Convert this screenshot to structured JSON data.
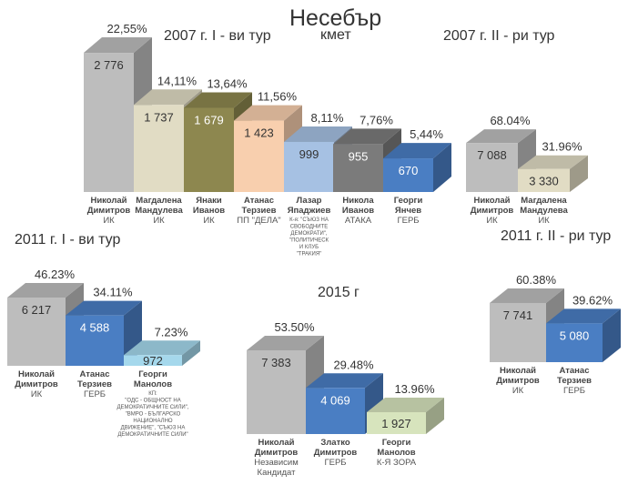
{
  "title": "Несебър",
  "subtitle": "кмет",
  "chart_data": [
    {
      "type": "bar",
      "title": "2007 г. I - ви тур",
      "bars": [
        {
          "name": [
            "Николай",
            "Димитров"
          ],
          "party": [
            "ИК"
          ],
          "value": 2776,
          "value_label": "2 776",
          "pct": "22,55%",
          "color": "#bdbdbd"
        },
        {
          "name": [
            "Магдалена",
            "Мандулева"
          ],
          "party": [
            "ИК"
          ],
          "value": 1737,
          "value_label": "1 737",
          "pct": "14,11%",
          "color": "#e1dcc4"
        },
        {
          "name": [
            "Янаки",
            "Иванов"
          ],
          "party": [
            "ИК"
          ],
          "value": 1679,
          "value_label": "1 679",
          "pct": "13,64%",
          "color": "#8d874f"
        },
        {
          "name": [
            "Атанас",
            "Терзиев"
          ],
          "party": [
            "ПП \"ДЕЛА\""
          ],
          "value": 1423,
          "value_label": "1 423",
          "pct": "11,56%",
          "color": "#f8cfae"
        },
        {
          "name": [
            "Лазар",
            "Япаджиев"
          ],
          "party": [
            "К-я: \"СЪЮЗ НА",
            "СВОБОДНИТЕ",
            "ДЕМОКРАТИ\",",
            "\"ПОЛИТИЧЕСК",
            "И КЛУБ",
            "\"ТРАКИЯ\""
          ],
          "value": 999,
          "value_label": "999",
          "pct": "8,11%",
          "color": "#a6c1e3"
        },
        {
          "name": [
            "Никола",
            "Иванов"
          ],
          "party": [
            "АТАКА"
          ],
          "value": 955,
          "value_label": "955",
          "pct": "7,76%",
          "color": "#7b7b7b"
        },
        {
          "name": [
            "Георги",
            "Янчев"
          ],
          "party": [
            "ГЕРБ"
          ],
          "value": 670,
          "value_label": "670",
          "pct": "5,44%",
          "color": "#4a7ec3"
        }
      ]
    },
    {
      "type": "bar",
      "title": "2007 г. II - ри тур",
      "bars": [
        {
          "name": [
            "Николай",
            "Димитров"
          ],
          "party": [
            "ИК"
          ],
          "value": 7088,
          "value_label": "7 088",
          "pct": "68.04%",
          "color": "#bdbdbd"
        },
        {
          "name": [
            "Магдалена",
            "Мандулева"
          ],
          "party": [
            "ИК"
          ],
          "value": 3330,
          "value_label": "3 330",
          "pct": "31.96%",
          "color": "#e1dcc4"
        }
      ]
    },
    {
      "type": "bar",
      "title": "2011 г. I - ви тур",
      "bars": [
        {
          "name": [
            "Николай",
            "Димитров"
          ],
          "party": [
            "ИК"
          ],
          "value": 6217,
          "value_label": "6 217",
          "pct": "46.23%",
          "color": "#bdbdbd"
        },
        {
          "name": [
            "Атанас",
            "Терзиев"
          ],
          "party": [
            "ГЕРБ"
          ],
          "value": 4588,
          "value_label": "4 588",
          "pct": "34.11%",
          "color": "#4a7ec3"
        },
        {
          "name": [
            "Георги",
            "Манолов"
          ],
          "party": [
            "КП:",
            "\"ОДС - ОБЩНОСТ НА",
            "ДЕМОКРАТИЧНИТЕ СИЛИ\",",
            "\"ВМРО - БЪЛГАРСКО",
            "НАЦИОНАЛНО",
            "ДВИЖЕНИЕ\", \"СЪЮЗ НА",
            "ДЕМОКРАТИЧНИТЕ СИЛИ\""
          ],
          "value": 972,
          "value_label": "972",
          "pct": "7.23%",
          "color": "#a5d8ec"
        }
      ]
    },
    {
      "type": "bar",
      "title": "2015 г",
      "bars": [
        {
          "name": [
            "Николай",
            "Димитров"
          ],
          "party": [
            "Независим",
            "Кандидат"
          ],
          "value": 7383,
          "value_label": "7 383",
          "pct": "53.50%",
          "color": "#bdbdbd"
        },
        {
          "name": [
            "Златко",
            "Димитров"
          ],
          "party": [
            "ГЕРБ"
          ],
          "value": 4069,
          "value_label": "4 069",
          "pct": "29.48%",
          "color": "#4a7ec3"
        },
        {
          "name": [
            "Георги",
            "Манолов"
          ],
          "party": [
            "К-Я ЗОРА"
          ],
          "value": 1927,
          "value_label": "1 927",
          "pct": "13.96%",
          "color": "#d7e4bd"
        }
      ]
    },
    {
      "type": "bar",
      "title": "2011 г. II - ри тур",
      "bars": [
        {
          "name": [
            "Николай",
            "Димитров"
          ],
          "party": [
            "ИК"
          ],
          "value": 7741,
          "value_label": "7 741",
          "pct": "60.38%",
          "color": "#bdbdbd"
        },
        {
          "name": [
            "Атанас",
            "Терзиев"
          ],
          "party": [
            "ГЕРБ"
          ],
          "value": 5080,
          "value_label": "5 080",
          "pct": "39.62%",
          "color": "#4a7ec3"
        }
      ]
    }
  ]
}
